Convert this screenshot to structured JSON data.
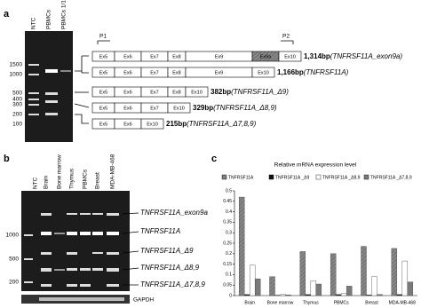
{
  "panel_a": {
    "label": "a",
    "lanes": [
      "NTC",
      "PBMCs",
      "PBMCs 1/10"
    ],
    "ladder": [
      "1500",
      "1000",
      "500",
      "400",
      "300",
      "200",
      "100"
    ],
    "primers": [
      "P1",
      "P2"
    ],
    "rows": [
      {
        "exons": [
          "Ex5",
          "Ex6",
          "Ex7",
          "Ex8",
          "Ex9",
          "Ex9a",
          "Ex10"
        ],
        "size": "1,314bp",
        "name": "(TNFRSF11A_exon9a)"
      },
      {
        "exons": [
          "Ex5",
          "Ex6",
          "Ex7",
          "Ex8",
          "Ex9",
          "Ex10"
        ],
        "size": "1,166bp",
        "name": "(TNFRSF11A)"
      },
      {
        "exons": [
          "Ex5",
          "Ex6",
          "Ex7",
          "Ex8",
          "Ex10"
        ],
        "size": "382bp",
        "name": "(TNFRSF11A_Δ9)"
      },
      {
        "exons": [
          "Ex5",
          "Ex6",
          "Ex7",
          "Ex10"
        ],
        "size": "329bp",
        "name": "(TNFRSF11A_Δ8,9)"
      },
      {
        "exons": [
          "Ex5",
          "Ex6",
          "Ex10"
        ],
        "size": "215bp",
        "name": "(TNFRSF11A_Δ7,8,9)"
      }
    ]
  },
  "panel_b": {
    "label": "b",
    "lanes": [
      "NTC",
      "Brain",
      "Bone marrow",
      "Thymus",
      "PBMCs",
      "Breast",
      "MDA-MB-468"
    ],
    "ladder": [
      "1000",
      "500",
      "200"
    ],
    "products": [
      "TNFRSF11A_exon9a",
      "TNFRSF11A",
      "TNFRSF11A_Δ9",
      "TNFRSF11A_Δ8,9",
      "TNFRSF11A_Δ7,8,9"
    ],
    "control": "GAPDH"
  },
  "panel_c": {
    "label": "c"
  },
  "chart_data": {
    "type": "bar",
    "title": "Relative mRNA expression level",
    "categories": [
      "Brain",
      "Bone marrow",
      "Thymus",
      "PBMCs",
      "Breast",
      "MDA-MB-468"
    ],
    "series": [
      {
        "name": "TNFRSF11A",
        "color": "#a8a8a8",
        "values": [
          0.47,
          0.09,
          0.21,
          0.2,
          0.235,
          0.225
        ]
      },
      {
        "name": "TNFRSF11A _Δ9",
        "color": "#111111",
        "values": [
          0.005,
          0.002,
          0.005,
          0.005,
          0.003,
          0.005
        ]
      },
      {
        "name": "TNFRSF11A _Δ8,9",
        "color": "#ffffff",
        "values": [
          0.145,
          0.005,
          0.07,
          0.01,
          0.09,
          0.165
        ]
      },
      {
        "name": "TNFRSF11A _Δ7,8,9",
        "color": "#7a7a7a",
        "values": [
          0.08,
          0.003,
          0.055,
          0.045,
          0.005,
          0.065
        ]
      }
    ],
    "ylim": [
      0,
      0.5
    ],
    "yticks": [
      0,
      0.05,
      0.1,
      0.15,
      0.2,
      0.25,
      0.3,
      0.35,
      0.4,
      0.45,
      0.5
    ]
  }
}
